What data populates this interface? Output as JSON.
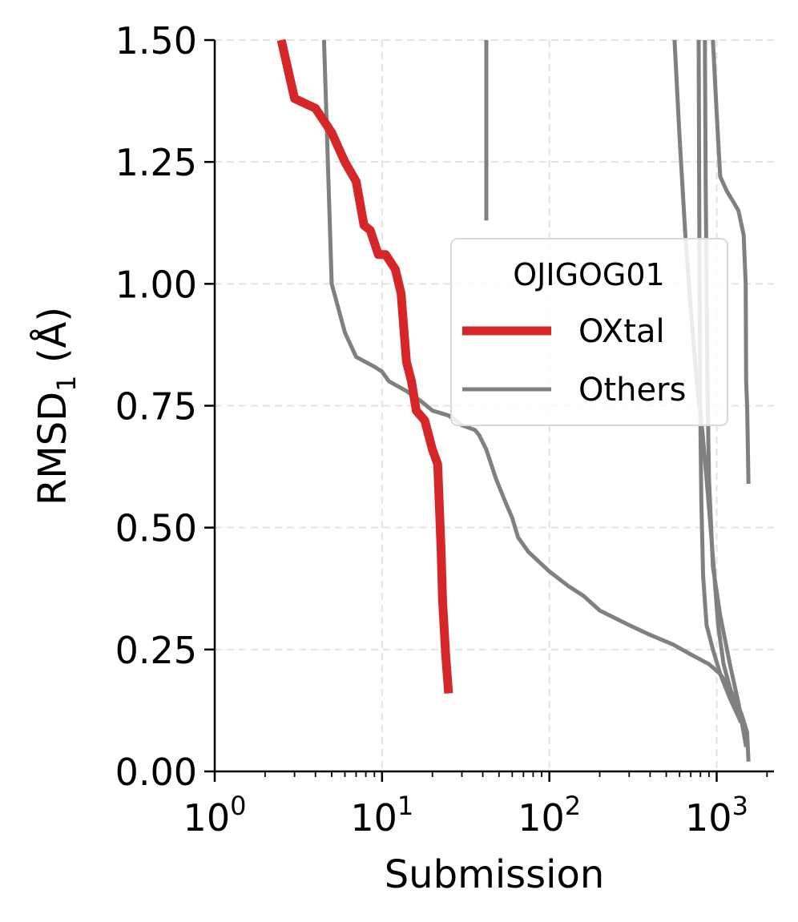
{
  "chart_data": {
    "type": "line",
    "xlabel": "Submission",
    "ylabel": "RMSD",
    "ylabel_sub": "1",
    "ylabel_unit": " (Å)",
    "x_scale": "log",
    "xlim": [
      1,
      2200
    ],
    "ylim": [
      0,
      1.5
    ],
    "x_ticks": [
      {
        "value": 1,
        "base": "10",
        "exp": "0"
      },
      {
        "value": 10,
        "base": "10",
        "exp": "1"
      },
      {
        "value": 100,
        "base": "10",
        "exp": "2"
      },
      {
        "value": 1000,
        "base": "10",
        "exp": "3"
      }
    ],
    "y_ticks": [
      {
        "value": 0,
        "label": "0.00"
      },
      {
        "value": 0.25,
        "label": "0.25"
      },
      {
        "value": 0.5,
        "label": "0.50"
      },
      {
        "value": 0.75,
        "label": "0.75"
      },
      {
        "value": 1.0,
        "label": "1.00"
      },
      {
        "value": 1.25,
        "label": "1.25"
      },
      {
        "value": 1.5,
        "label": "1.50"
      }
    ],
    "grid": true,
    "legend": {
      "title": "OJIGOG01",
      "placement": "right",
      "entries": [
        {
          "label": "OXtal",
          "color": "#d62728"
        },
        {
          "label": "Others",
          "color": "#808080"
        }
      ]
    },
    "series": [
      {
        "name": "OXtal",
        "color": "#d62728",
        "points": [
          [
            2.5,
            1.5
          ],
          [
            3.0,
            1.38
          ],
          [
            4.0,
            1.36
          ],
          [
            5.0,
            1.31
          ],
          [
            6.0,
            1.25
          ],
          [
            7.0,
            1.21
          ],
          [
            7.8,
            1.12
          ],
          [
            8.5,
            1.11
          ],
          [
            9.5,
            1.06
          ],
          [
            10.5,
            1.06
          ],
          [
            12.0,
            1.03
          ],
          [
            13.0,
            0.98
          ],
          [
            14.0,
            0.84
          ],
          [
            15.0,
            0.8
          ],
          [
            16.0,
            0.74
          ],
          [
            18.0,
            0.72
          ],
          [
            20.0,
            0.66
          ],
          [
            21.5,
            0.63
          ],
          [
            22.5,
            0.46
          ],
          [
            23.0,
            0.35
          ],
          [
            24.0,
            0.24
          ],
          [
            25.0,
            0.16
          ]
        ]
      },
      {
        "name": "",
        "color": "#808080",
        "points": [
          [
            4.5,
            1.5
          ],
          [
            5.0,
            1.0
          ],
          [
            6.0,
            0.9
          ],
          [
            7.0,
            0.85
          ],
          [
            9.0,
            0.83
          ],
          [
            10.0,
            0.82
          ],
          [
            11.0,
            0.8
          ],
          [
            14.0,
            0.78
          ],
          [
            17.0,
            0.76
          ],
          [
            20.0,
            0.74
          ],
          [
            25.0,
            0.73
          ],
          [
            30.0,
            0.71
          ],
          [
            36.0,
            0.7
          ],
          [
            38.0,
            0.69
          ],
          [
            42.0,
            0.66
          ],
          [
            48.0,
            0.6
          ],
          [
            55.0,
            0.55
          ],
          [
            60.0,
            0.52
          ],
          [
            65.0,
            0.48
          ],
          [
            75.0,
            0.45
          ],
          [
            100.0,
            0.41
          ],
          [
            130.0,
            0.38
          ],
          [
            160.0,
            0.36
          ],
          [
            200.0,
            0.33
          ],
          [
            300.0,
            0.3
          ],
          [
            400.0,
            0.28
          ],
          [
            550.0,
            0.26
          ],
          [
            700.0,
            0.24
          ],
          [
            900.0,
            0.22
          ],
          [
            1050.0,
            0.2
          ],
          [
            1200.0,
            0.17
          ],
          [
            1400.0,
            0.12
          ],
          [
            1520.0,
            0.08
          ],
          [
            1550.0,
            0.02
          ]
        ]
      },
      {
        "name": "",
        "color": "#808080",
        "points": [
          [
            42,
            1.5
          ],
          [
            42,
            1.13
          ]
        ]
      },
      {
        "name": "",
        "color": "#808080",
        "points": [
          [
            560,
            1.5
          ],
          [
            600,
            1.3
          ],
          [
            650,
            1.1
          ],
          [
            700,
            0.95
          ],
          [
            760,
            0.8
          ],
          [
            820,
            0.7
          ],
          [
            870,
            0.6
          ],
          [
            920,
            0.5
          ],
          [
            970,
            0.4
          ],
          [
            1020,
            0.3
          ],
          [
            1100,
            0.22
          ],
          [
            1250,
            0.15
          ],
          [
            1400,
            0.1
          ]
        ]
      },
      {
        "name": "",
        "color": "#808080",
        "points": [
          [
            780,
            1.5
          ],
          [
            790,
            1.0
          ],
          [
            800,
            0.7
          ],
          [
            810,
            0.55
          ],
          [
            830,
            0.4
          ],
          [
            870,
            0.3
          ],
          [
            950,
            0.25
          ],
          [
            1050,
            0.2
          ],
          [
            1200,
            0.15
          ],
          [
            1400,
            0.1
          ]
        ]
      },
      {
        "name": "",
        "color": "#808080",
        "points": [
          [
            850,
            1.5
          ],
          [
            860,
            1.2
          ],
          [
            870,
            1.0
          ],
          [
            880,
            0.8
          ],
          [
            900,
            0.6
          ],
          [
            950,
            0.42
          ],
          [
            1050,
            0.32
          ],
          [
            1200,
            0.22
          ],
          [
            1350,
            0.14
          ],
          [
            1500,
            0.05
          ]
        ]
      },
      {
        "name": "",
        "color": "#808080",
        "points": [
          [
            950,
            1.5
          ],
          [
            1000,
            1.35
          ],
          [
            1050,
            1.22
          ],
          [
            1150,
            1.19
          ],
          [
            1250,
            1.17
          ],
          [
            1350,
            1.15
          ],
          [
            1450,
            1.1
          ],
          [
            1490,
            1.0
          ],
          [
            1500,
            0.8
          ],
          [
            1520,
            0.75
          ],
          [
            1550,
            0.59
          ]
        ]
      }
    ]
  }
}
